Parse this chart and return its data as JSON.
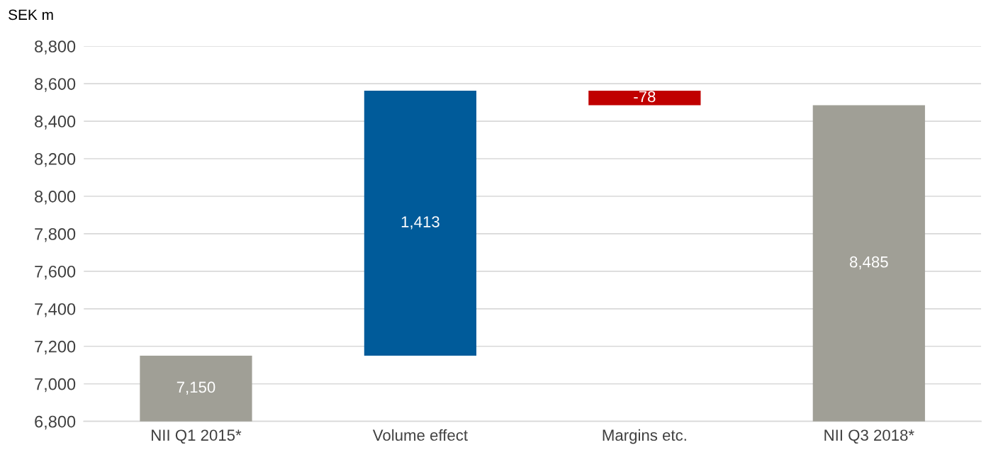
{
  "chart_data": {
    "type": "bar",
    "ylabel": "SEK m",
    "categories": [
      "NII Q1 2015*",
      "Volume effect",
      "Margins etc.",
      "NII Q3 2018*"
    ],
    "values": [
      7150,
      1413,
      -78,
      8485
    ],
    "base": [
      0,
      7150,
      8563,
      0
    ],
    "colors": [
      "#a09f96",
      "#005b9a",
      "#c00000",
      "#a09f96"
    ],
    "data_labels": true,
    "value_labels": [
      "7,150",
      "1,413",
      "-78",
      "8,485"
    ],
    "ylim": [
      6800,
      8800
    ],
    "yticks": [
      {
        "value": 6800,
        "label": "6,800"
      },
      {
        "value": 7000,
        "label": "7,000"
      },
      {
        "value": 7200,
        "label": "7,200"
      },
      {
        "value": 7400,
        "label": "7,400"
      },
      {
        "value": 7600,
        "label": "7,600"
      },
      {
        "value": 7800,
        "label": "7,800"
      },
      {
        "value": 8000,
        "label": "8,000"
      },
      {
        "value": 8200,
        "label": "8,200"
      },
      {
        "value": 8400,
        "label": "8,400"
      },
      {
        "value": 8600,
        "label": "8,600"
      },
      {
        "value": 8800,
        "label": "8,800"
      }
    ],
    "grid": "y",
    "legend": false
  }
}
